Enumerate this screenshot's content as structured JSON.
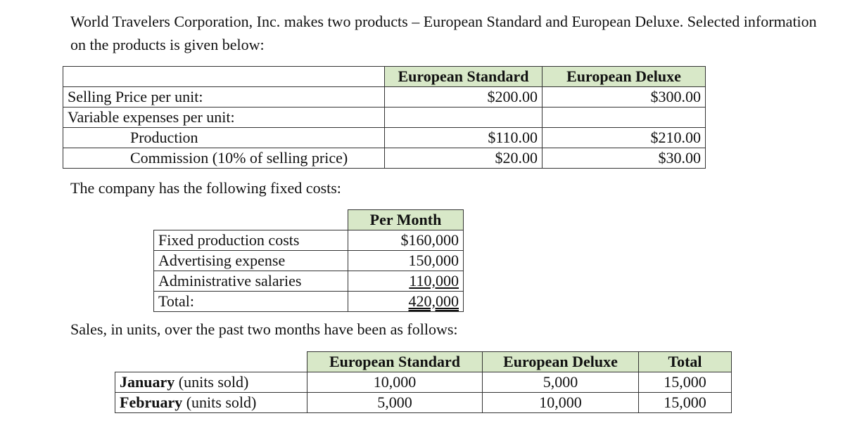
{
  "intro": "World Travelers Corporation, Inc. makes two products – European Standard and European Deluxe. Selected information on the products is given below:",
  "products_table": {
    "headers": [
      "European Standard",
      "European Deluxe"
    ],
    "selling_label": "Selling Price per unit:",
    "selling_standard": "$200.00",
    "selling_deluxe": "$300.00",
    "variable_label": "Variable expenses per unit:",
    "production_label": "Production",
    "production_standard": "$110.00",
    "production_deluxe": "$210.00",
    "commission_label": "Commission (10% of selling price)",
    "commission_standard": "$20.00",
    "commission_deluxe": "$30.00"
  },
  "fixed_intro": "The company has the following fixed costs:",
  "fixed_table": {
    "header": "Per Month",
    "rows": [
      {
        "label": "Fixed production costs",
        "value": "$160,000"
      },
      {
        "label": "Advertising expense",
        "value": "150,000"
      },
      {
        "label": "Administrative salaries",
        "value": "110,000"
      },
      {
        "label": "Total:",
        "value": "420,000"
      }
    ]
  },
  "sales_intro": "Sales, in units, over the past two months have been as follows:",
  "sales_table": {
    "headers": [
      "European Standard",
      "European Deluxe",
      "Total"
    ],
    "rows": [
      {
        "month": "January",
        "suffix": " (units sold)",
        "standard": "10,000",
        "deluxe": "5,000",
        "total": "15,000"
      },
      {
        "month": "February",
        "suffix": " (units sold)",
        "standard": "5,000",
        "deluxe": "10,000",
        "total": "15,000"
      }
    ]
  },
  "colors": {
    "header_fill": "#d8e8c8",
    "border": "#333333"
  }
}
